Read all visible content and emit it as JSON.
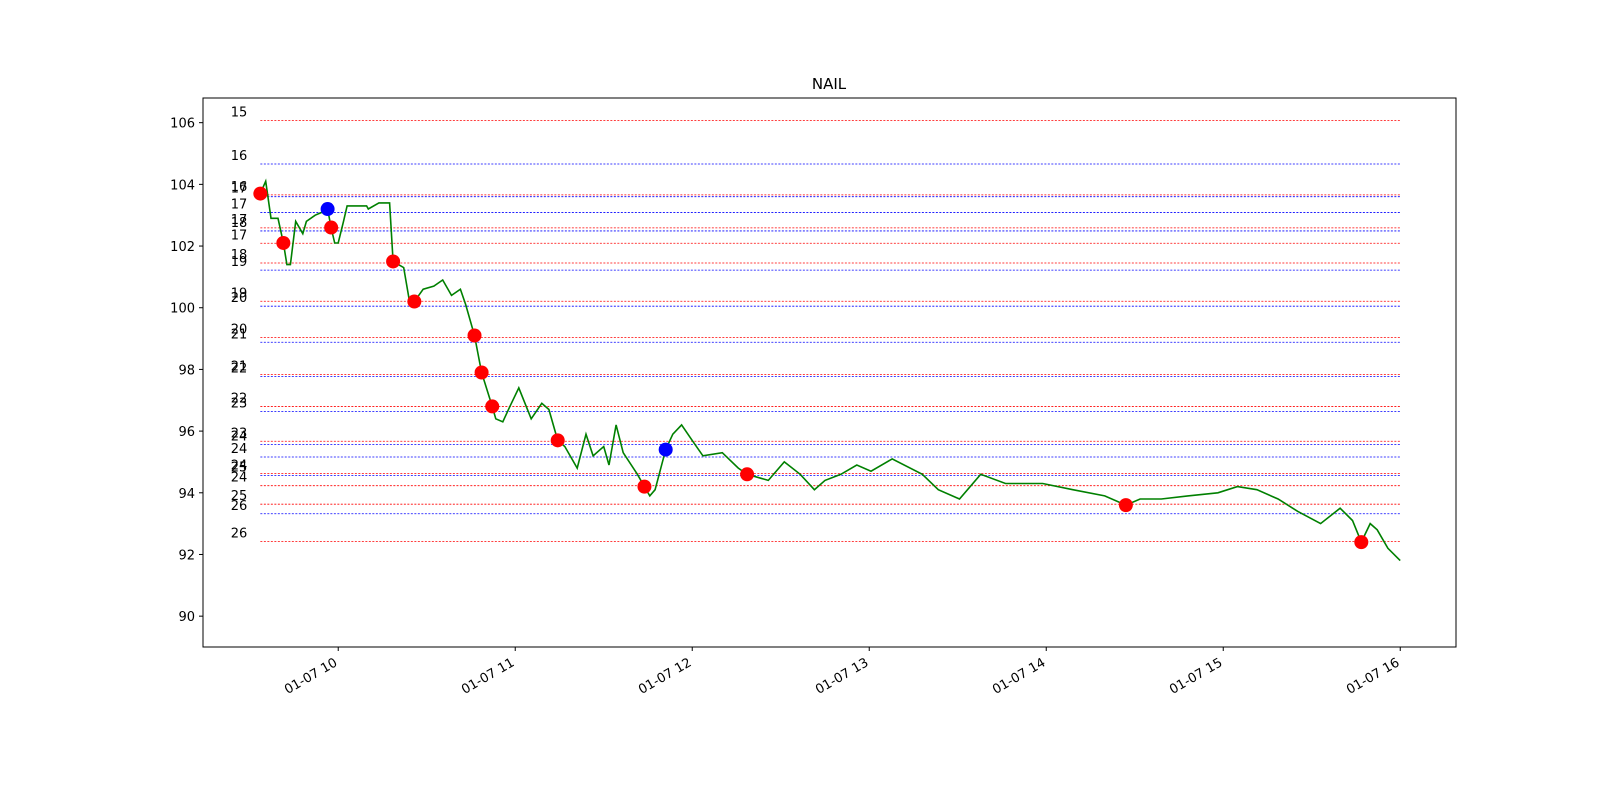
{
  "chart_data": {
    "type": "line",
    "title": "NAIL",
    "xlim": [
      9.236,
      16.315
    ],
    "xticks": [
      {
        "value": 10,
        "label": "01-07 10"
      },
      {
        "value": 11,
        "label": "01-07 11"
      },
      {
        "value": 12,
        "label": "01-07 12"
      },
      {
        "value": 13,
        "label": "01-07 13"
      },
      {
        "value": 14,
        "label": "01-07 14"
      },
      {
        "value": 15,
        "label": "01-07 15"
      },
      {
        "value": 16,
        "label": "01-07 16"
      }
    ],
    "ylim": [
      89,
      106.8
    ],
    "yticks": [
      90,
      92,
      94,
      96,
      98,
      100,
      102,
      104,
      106
    ],
    "x": [
      9.56,
      9.59,
      9.62,
      9.66,
      9.69,
      9.71,
      9.73,
      9.76,
      9.8,
      9.82,
      9.87,
      9.91,
      9.94,
      9.96,
      9.98,
      10.0,
      10.03,
      10.05,
      10.16,
      10.17,
      10.23,
      10.29,
      10.31,
      10.37,
      10.4,
      10.43,
      10.48,
      10.54,
      10.59,
      10.64,
      10.69,
      10.72,
      10.77,
      10.81,
      10.87,
      10.89,
      10.93,
      10.97,
      11.02,
      11.09,
      11.15,
      11.19,
      11.24,
      11.28,
      11.35,
      11.4,
      11.44,
      11.5,
      11.53,
      11.57,
      11.61,
      11.69,
      11.73,
      11.76,
      11.79,
      11.85,
      11.89,
      11.94,
      12.0,
      12.06,
      12.17,
      12.26,
      12.31,
      12.43,
      12.52,
      12.61,
      12.69,
      12.75,
      12.84,
      12.93,
      13.01,
      13.13,
      13.3,
      13.39,
      13.51,
      13.63,
      13.77,
      13.98,
      14.15,
      14.33,
      14.45,
      14.53,
      14.65,
      14.8,
      14.97,
      15.08,
      15.19,
      15.31,
      15.42,
      15.55,
      15.66,
      15.73,
      15.78,
      15.83,
      15.87,
      15.93,
      16.0
    ],
    "series": [
      {
        "color": "#008000",
        "values": [
          103.7,
          104.1,
          102.9,
          102.9,
          102.1,
          101.4,
          101.4,
          102.8,
          102.4,
          102.8,
          103.0,
          103.1,
          103.2,
          102.6,
          102.1,
          102.1,
          102.8,
          103.3,
          103.3,
          103.2,
          103.4,
          103.4,
          101.5,
          101.3,
          100.3,
          100.2,
          100.6,
          100.7,
          100.9,
          100.4,
          100.6,
          100.1,
          99.1,
          97.9,
          96.8,
          96.4,
          96.3,
          96.8,
          97.4,
          96.4,
          96.9,
          96.7,
          95.7,
          95.5,
          94.8,
          95.9,
          95.2,
          95.5,
          94.9,
          96.2,
          95.3,
          94.6,
          94.2,
          93.9,
          94.1,
          95.4,
          95.9,
          96.2,
          95.7,
          95.2,
          95.3,
          94.8,
          94.6,
          94.4,
          95.0,
          94.6,
          94.1,
          94.4,
          94.6,
          94.9,
          94.7,
          95.1,
          94.6,
          94.1,
          93.8,
          94.6,
          94.3,
          94.3,
          94.1,
          93.9,
          93.6,
          93.8,
          93.8,
          93.9,
          94.0,
          94.2,
          94.1,
          93.8,
          93.4,
          93.0,
          93.5,
          93.1,
          92.4,
          93.0,
          92.8,
          92.2,
          91.8
        ]
      }
    ],
    "markers": [
      {
        "color": "red",
        "x": [
          9.56,
          9.69,
          9.96,
          10.31,
          10.43,
          10.77,
          10.81,
          10.87,
          11.24,
          11.73,
          12.31,
          14.45,
          15.78
        ],
        "values": [
          103.7,
          102.1,
          102.6,
          101.5,
          100.2,
          99.1,
          97.9,
          96.8,
          95.7,
          94.2,
          94.6,
          93.6,
          92.4
        ]
      },
      {
        "color": "blue",
        "x": [
          9.94,
          11.85
        ],
        "values": [
          103.2,
          95.4
        ]
      }
    ],
    "levels": [
      {
        "label": "15",
        "value": 106.07,
        "color": "red"
      },
      {
        "label": "16",
        "value": 104.66,
        "color": "blue"
      },
      {
        "label": "16",
        "value": 103.66,
        "color": "red"
      },
      {
        "label": "17",
        "value": 103.6,
        "color": "blue"
      },
      {
        "label": "17",
        "value": 103.09,
        "color": "blue"
      },
      {
        "label": "17",
        "value": 102.59,
        "color": "red"
      },
      {
        "label": "18",
        "value": 102.49,
        "color": "blue"
      },
      {
        "label": "17",
        "value": 102.09,
        "color": "red"
      },
      {
        "label": "18",
        "value": 101.45,
        "color": "red"
      },
      {
        "label": "19",
        "value": 101.22,
        "color": "blue"
      },
      {
        "label": "19",
        "value": 100.21,
        "color": "red"
      },
      {
        "label": "20",
        "value": 100.05,
        "color": "blue"
      },
      {
        "label": "20",
        "value": 99.04,
        "color": "red"
      },
      {
        "label": "21",
        "value": 98.88,
        "color": "blue"
      },
      {
        "label": "21",
        "value": 97.84,
        "color": "red"
      },
      {
        "label": "22",
        "value": 97.77,
        "color": "blue"
      },
      {
        "label": "22",
        "value": 96.8,
        "color": "red"
      },
      {
        "label": "23",
        "value": 96.64,
        "color": "blue"
      },
      {
        "label": "23",
        "value": 95.67,
        "color": "red"
      },
      {
        "label": "24",
        "value": 95.57,
        "color": "blue"
      },
      {
        "label": "24",
        "value": 95.16,
        "color": "blue"
      },
      {
        "label": "24",
        "value": 94.63,
        "color": "red"
      },
      {
        "label": "25",
        "value": 94.56,
        "color": "blue"
      },
      {
        "label": "24",
        "value": 94.23,
        "color": "red"
      },
      {
        "label": "25",
        "value": 93.63,
        "color": "red"
      },
      {
        "label": "26",
        "value": 93.32,
        "color": "blue"
      },
      {
        "label": "26",
        "value": 92.42,
        "color": "red"
      }
    ]
  }
}
